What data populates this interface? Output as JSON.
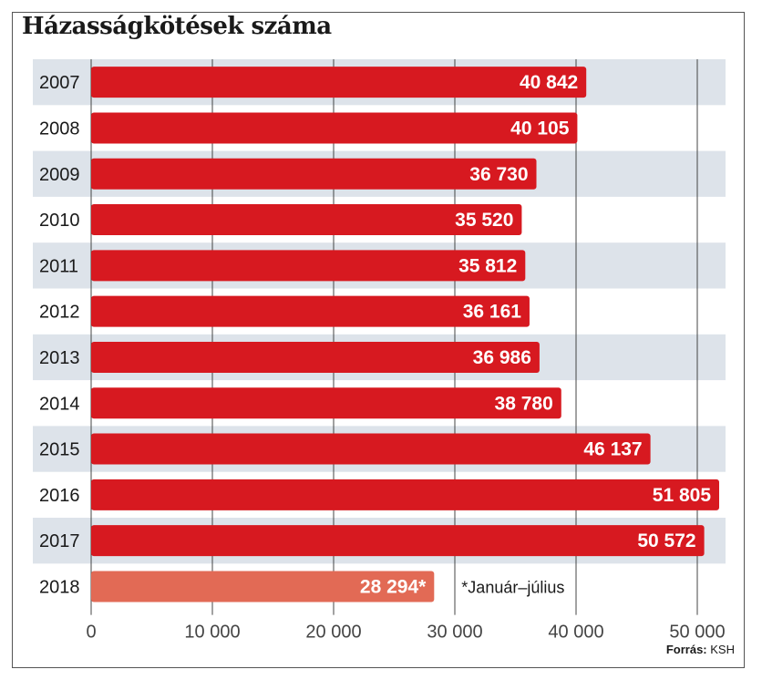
{
  "chart_data": {
    "type": "bar",
    "orientation": "horizontal",
    "title": "Házasságkötések száma",
    "categories": [
      "2007",
      "2008",
      "2009",
      "2010",
      "2011",
      "2012",
      "2013",
      "2014",
      "2015",
      "2016",
      "2017",
      "2018"
    ],
    "values": [
      40842,
      40105,
      36730,
      35520,
      35812,
      36161,
      36986,
      38780,
      46137,
      51805,
      50572,
      28294
    ],
    "value_labels": [
      "40 842",
      "40 105",
      "36 730",
      "35 520",
      "35 812",
      "36 161",
      "36 986",
      "38 780",
      "46 137",
      "51 805",
      "50 572",
      "28 294*"
    ],
    "xlim": [
      0,
      52000
    ],
    "x_ticks": [
      0,
      10000,
      20000,
      30000,
      40000,
      50000
    ],
    "x_tick_labels": [
      "0",
      "10 000",
      "20 000",
      "30 000",
      "40 000",
      "50 000"
    ],
    "grid": true,
    "alternating_row_shading": true,
    "colors": {
      "bar": "#d71920",
      "bar_partial_year": "#e26a55",
      "row_shade": "#dde3ea",
      "grid": "#444444"
    },
    "annotation": "*Január–július",
    "source_prefix": "Forrás:",
    "source_name": "KSH"
  }
}
